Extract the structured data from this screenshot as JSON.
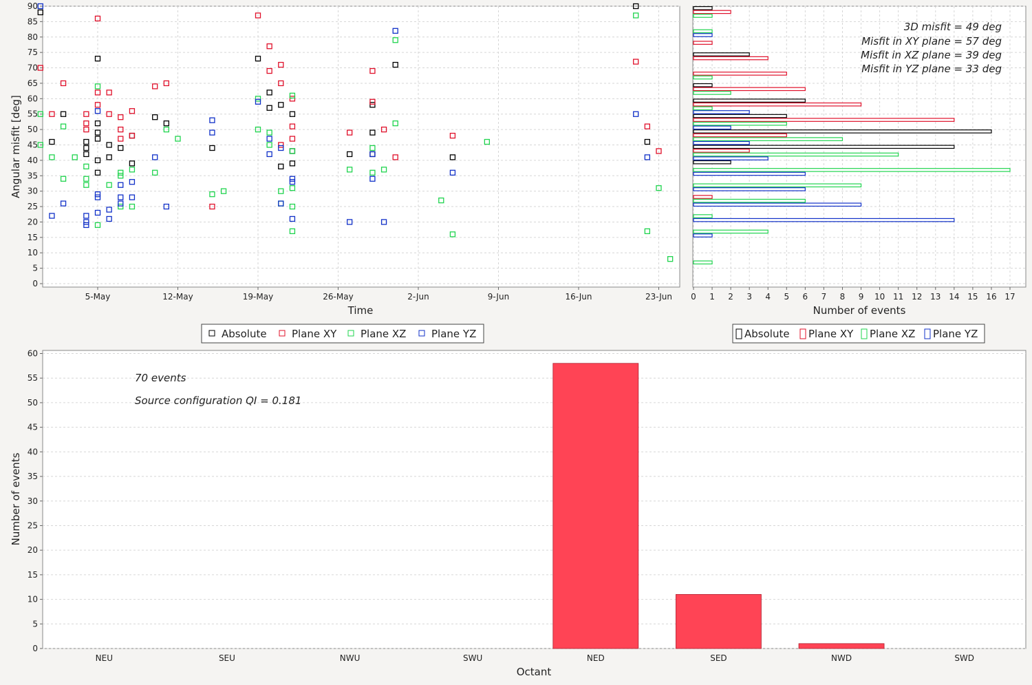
{
  "colors": {
    "absolute": "#000000",
    "xy": "#e0102a",
    "xz": "#1fd44e",
    "yz": "#1030c8",
    "bar_fill": "#ff4455",
    "bar_stroke": "#b02030"
  },
  "chart_data": [
    {
      "id": "scatter",
      "type": "scatter",
      "xlabel": "Time",
      "ylabel": "Angular misfit [deg]",
      "xticks": [
        "5-May",
        "12-May",
        "19-May",
        "26-May",
        "2-Jun",
        "9-Jun",
        "16-Jun",
        "23-Jun"
      ],
      "ylim": [
        0,
        90
      ],
      "yticks": [
        "0",
        "5",
        "10",
        "15",
        "20",
        "25",
        "30",
        "35",
        "40",
        "45",
        "50",
        "55",
        "60",
        "65",
        "70",
        "75",
        "80",
        "85",
        "90"
      ],
      "legend": [
        "Absolute",
        "Plane XY",
        "Plane XZ",
        "Plane YZ"
      ],
      "series": [
        {
          "name": "Absolute",
          "key": "absolute",
          "points": [
            [
              "2024-04-30",
              88
            ],
            [
              "2024-05-01",
              46
            ],
            [
              "2024-05-02",
              55
            ],
            [
              "2024-05-04",
              42
            ],
            [
              "2024-05-04",
              44
            ],
            [
              "2024-05-04",
              46
            ],
            [
              "2024-05-05",
              36
            ],
            [
              "2024-05-05",
              40
            ],
            [
              "2024-05-05",
              47
            ],
            [
              "2024-05-05",
              52
            ],
            [
              "2024-05-05",
              73
            ],
            [
              "2024-05-05",
              49
            ],
            [
              "2024-05-06",
              45
            ],
            [
              "2024-05-06",
              41
            ],
            [
              "2024-05-07",
              44
            ],
            [
              "2024-05-08",
              39
            ],
            [
              "2024-05-08",
              48
            ],
            [
              "2024-05-10",
              54
            ],
            [
              "2024-05-11",
              52
            ],
            [
              "2024-05-15",
              44
            ],
            [
              "2024-05-19",
              73
            ],
            [
              "2024-05-20",
              62
            ],
            [
              "2024-05-20",
              57
            ],
            [
              "2024-05-21",
              58
            ],
            [
              "2024-05-22",
              55
            ],
            [
              "2024-05-22",
              43
            ],
            [
              "2024-05-22",
              39
            ],
            [
              "2024-05-21",
              38
            ],
            [
              "2024-05-27",
              42
            ],
            [
              "2024-05-29",
              49
            ],
            [
              "2024-05-29",
              58
            ],
            [
              "2024-05-29",
              42
            ],
            [
              "2024-05-31",
              71
            ],
            [
              "2024-06-05",
              41
            ],
            [
              "2024-06-21",
              90
            ],
            [
              "2024-06-22",
              46
            ]
          ]
        },
        {
          "name": "Plane XY",
          "key": "xy",
          "points": [
            [
              "2024-04-30",
              70
            ],
            [
              "2024-05-01",
              55
            ],
            [
              "2024-05-02",
              65
            ],
            [
              "2024-05-04",
              55
            ],
            [
              "2024-05-04",
              52
            ],
            [
              "2024-05-04",
              50
            ],
            [
              "2024-05-05",
              86
            ],
            [
              "2024-05-05",
              62
            ],
            [
              "2024-05-05",
              58
            ],
            [
              "2024-05-06",
              62
            ],
            [
              "2024-05-06",
              55
            ],
            [
              "2024-05-07",
              54
            ],
            [
              "2024-05-07",
              50
            ],
            [
              "2024-05-07",
              47
            ],
            [
              "2024-05-08",
              56
            ],
            [
              "2024-05-08",
              48
            ],
            [
              "2024-05-10",
              64
            ],
            [
              "2024-05-11",
              65
            ],
            [
              "2024-05-15",
              25
            ],
            [
              "2024-05-19",
              87
            ],
            [
              "2024-05-20",
              77
            ],
            [
              "2024-05-20",
              69
            ],
            [
              "2024-05-21",
              65
            ],
            [
              "2024-05-21",
              71
            ],
            [
              "2024-05-22",
              60
            ],
            [
              "2024-05-22",
              51
            ],
            [
              "2024-05-22",
              47
            ],
            [
              "2024-05-21",
              45
            ],
            [
              "2024-05-27",
              49
            ],
            [
              "2024-05-29",
              69
            ],
            [
              "2024-05-29",
              59
            ],
            [
              "2024-05-30",
              50
            ],
            [
              "2024-05-31",
              41
            ],
            [
              "2024-06-05",
              48
            ],
            [
              "2024-06-21",
              72
            ],
            [
              "2024-06-22",
              51
            ],
            [
              "2024-06-23",
              43
            ]
          ]
        },
        {
          "name": "Plane XZ",
          "key": "xz",
          "points": [
            [
              "2024-04-30",
              45
            ],
            [
              "2024-04-30",
              55
            ],
            [
              "2024-05-01",
              41
            ],
            [
              "2024-05-02",
              51
            ],
            [
              "2024-05-02",
              34
            ],
            [
              "2024-05-03",
              41
            ],
            [
              "2024-05-04",
              38
            ],
            [
              "2024-05-04",
              34
            ],
            [
              "2024-05-04",
              32
            ],
            [
              "2024-05-05",
              64
            ],
            [
              "2024-05-05",
              19
            ],
            [
              "2024-05-06",
              32
            ],
            [
              "2024-05-07",
              36
            ],
            [
              "2024-05-07",
              35
            ],
            [
              "2024-05-07",
              25
            ],
            [
              "2024-05-08",
              37
            ],
            [
              "2024-05-08",
              25
            ],
            [
              "2024-05-10",
              36
            ],
            [
              "2024-05-11",
              50
            ],
            [
              "2024-05-12",
              47
            ],
            [
              "2024-05-15",
              29
            ],
            [
              "2024-05-16",
              30
            ],
            [
              "2024-05-19",
              60
            ],
            [
              "2024-05-19",
              50
            ],
            [
              "2024-05-20",
              49
            ],
            [
              "2024-05-20",
              45
            ],
            [
              "2024-05-21",
              30
            ],
            [
              "2024-05-21",
              26
            ],
            [
              "2024-05-22",
              61
            ],
            [
              "2024-05-22",
              43
            ],
            [
              "2024-05-22",
              31
            ],
            [
              "2024-05-22",
              25
            ],
            [
              "2024-05-22",
              17
            ],
            [
              "2024-05-27",
              37
            ],
            [
              "2024-05-29",
              44
            ],
            [
              "2024-05-29",
              36
            ],
            [
              "2024-05-30",
              37
            ],
            [
              "2024-05-31",
              79
            ],
            [
              "2024-05-31",
              52
            ],
            [
              "2024-06-04",
              27
            ],
            [
              "2024-06-05",
              16
            ],
            [
              "2024-06-08",
              46
            ],
            [
              "2024-06-21",
              87
            ],
            [
              "2024-06-22",
              17
            ],
            [
              "2024-06-23",
              31
            ],
            [
              "2024-06-24",
              8
            ]
          ]
        },
        {
          "name": "Plane YZ",
          "key": "yz",
          "points": [
            [
              "2024-04-30",
              90
            ],
            [
              "2024-05-01",
              22
            ],
            [
              "2024-05-02",
              26
            ],
            [
              "2024-05-04",
              22
            ],
            [
              "2024-05-04",
              20
            ],
            [
              "2024-05-04",
              19
            ],
            [
              "2024-05-05",
              29
            ],
            [
              "2024-05-05",
              23
            ],
            [
              "2024-05-05",
              28
            ],
            [
              "2024-05-05",
              56
            ],
            [
              "2024-05-06",
              21
            ],
            [
              "2024-05-06",
              24
            ],
            [
              "2024-05-07",
              26
            ],
            [
              "2024-05-07",
              28
            ],
            [
              "2024-05-07",
              32
            ],
            [
              "2024-05-08",
              33
            ],
            [
              "2024-05-08",
              28
            ],
            [
              "2024-05-10",
              41
            ],
            [
              "2024-05-11",
              25
            ],
            [
              "2024-05-15",
              53
            ],
            [
              "2024-05-15",
              49
            ],
            [
              "2024-05-19",
              59
            ],
            [
              "2024-05-20",
              47
            ],
            [
              "2024-05-20",
              42
            ],
            [
              "2024-05-21",
              44
            ],
            [
              "2024-05-21",
              26
            ],
            [
              "2024-05-22",
              34
            ],
            [
              "2024-05-22",
              33
            ],
            [
              "2024-05-22",
              21
            ],
            [
              "2024-05-27",
              20
            ],
            [
              "2024-05-29",
              42
            ],
            [
              "2024-05-29",
              34
            ],
            [
              "2024-05-30",
              20
            ],
            [
              "2024-05-31",
              82
            ],
            [
              "2024-06-05",
              36
            ],
            [
              "2024-06-21",
              55
            ],
            [
              "2024-06-22",
              41
            ]
          ]
        }
      ]
    },
    {
      "id": "histogram",
      "type": "bar",
      "orientation": "horizontal",
      "xlabel": "Number of events",
      "xlim": [
        0,
        18
      ],
      "xticks": [
        "0",
        "1",
        "2",
        "3",
        "4",
        "5",
        "6",
        "7",
        "8",
        "9",
        "10",
        "11",
        "12",
        "13",
        "14",
        "15",
        "16",
        "17"
      ],
      "ylim": [
        0,
        90
      ],
      "bin_width": 5,
      "legend": [
        "Absolute",
        "Plane XY",
        "Plane XZ",
        "Plane YZ"
      ],
      "annotations": [
        "3D misfit =  49 deg",
        "Misfit in XY plane =  57 deg",
        "Misfit in XZ plane =  39 deg",
        "Misfit in YZ plane =  33 deg"
      ],
      "series": [
        {
          "name": "Absolute",
          "key": "absolute",
          "bins": [
            [
              85,
              1
            ],
            [
              70,
              3
            ],
            [
              60,
              1
            ],
            [
              55,
              6
            ],
            [
              50,
              5
            ],
            [
              45,
              16
            ],
            [
              40,
              14
            ],
            [
              35,
              2
            ]
          ]
        },
        {
          "name": "Plane XY",
          "key": "xy",
          "bins": [
            [
              85,
              2
            ],
            [
              75,
              1
            ],
            [
              70,
              4
            ],
            [
              65,
              5
            ],
            [
              60,
              6
            ],
            [
              55,
              9
            ],
            [
              50,
              14
            ],
            [
              45,
              5
            ],
            [
              40,
              3
            ],
            [
              25,
              1
            ]
          ]
        },
        {
          "name": "Plane XZ",
          "key": "xz",
          "bins": [
            [
              85,
              1
            ],
            [
              80,
              1
            ],
            [
              65,
              1
            ],
            [
              60,
              2
            ],
            [
              55,
              1
            ],
            [
              50,
              5
            ],
            [
              45,
              8
            ],
            [
              40,
              11
            ],
            [
              35,
              17
            ],
            [
              30,
              9
            ],
            [
              25,
              6
            ],
            [
              20,
              1
            ],
            [
              15,
              4
            ],
            [
              5,
              1
            ]
          ]
        },
        {
          "name": "Plane YZ",
          "key": "yz",
          "bins": [
            [
              80,
              1
            ],
            [
              55,
              3
            ],
            [
              50,
              2
            ],
            [
              45,
              3
            ],
            [
              40,
              4
            ],
            [
              35,
              6
            ],
            [
              30,
              6
            ],
            [
              25,
              9
            ],
            [
              20,
              14
            ],
            [
              15,
              1
            ]
          ]
        }
      ]
    },
    {
      "id": "octant",
      "type": "bar",
      "xlabel": "Octant",
      "ylabel": "Number of events",
      "categories": [
        "NEU",
        "SEU",
        "NWU",
        "SWU",
        "NED",
        "SED",
        "NWD",
        "SWD"
      ],
      "values": [
        0,
        0,
        0,
        0,
        58,
        11,
        1,
        0
      ],
      "ylim": [
        0,
        60
      ],
      "yticks": [
        "0",
        "5",
        "10",
        "15",
        "20",
        "25",
        "30",
        "35",
        "40",
        "45",
        "50",
        "55",
        "60"
      ],
      "annotations": [
        "70 events",
        "Source configuration QI = 0.181"
      ]
    }
  ]
}
